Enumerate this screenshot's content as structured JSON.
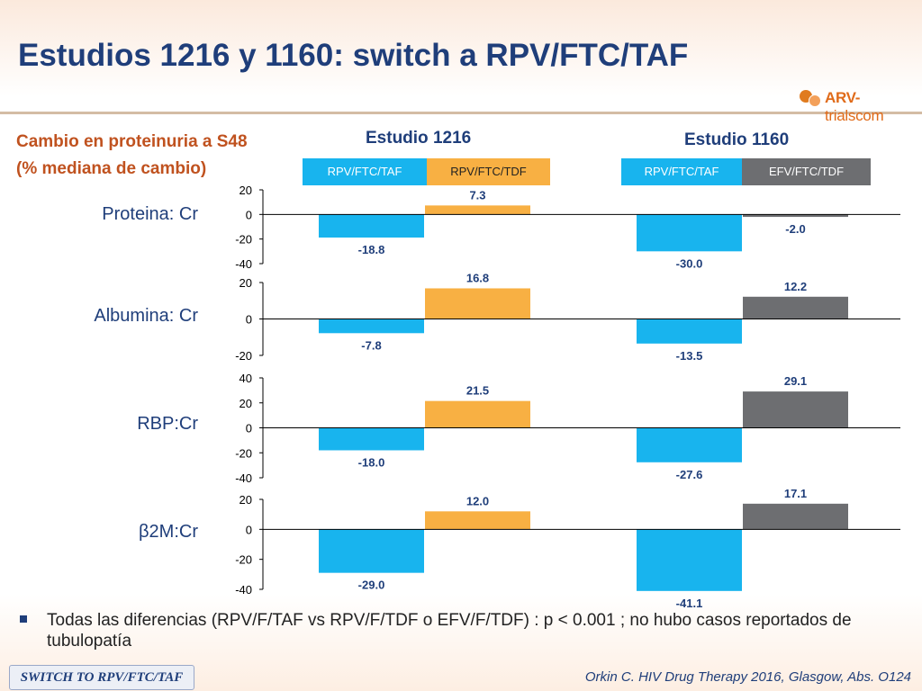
{
  "title": "Estudios 1216 y 1160: switch a RPV/FTC/TAF",
  "logo": {
    "part1": "ARV-",
    "part2": "trials",
    "part3": "com"
  },
  "subtitle": {
    "line1": "Cambio en proteinuria a S48",
    "line2": "(% mediana de cambio)"
  },
  "colors": {
    "taf": "#18b4ee",
    "tdf_1216": "#f8b043",
    "tdf_1160": "#6d6e71",
    "title": "#1f3e7a",
    "subtitle": "#c0521f"
  },
  "chart_data": {
    "type": "bar",
    "title": "Cambio en proteinuria a S48 (% mediana de cambio)",
    "studies": [
      {
        "name": "Estudio 1216",
        "series": [
          "RPV/FTC/TAF",
          "RPV/FTC/TDF"
        ]
      },
      {
        "name": "Estudio 1160",
        "series": [
          "RPV/FTC/TAF",
          "EFV/FTC/TDF"
        ]
      }
    ],
    "panels": [
      {
        "label": "Proteina: Cr",
        "ylim": [
          -40,
          20
        ],
        "ticks": [
          "20",
          "0",
          "-20",
          "-40"
        ],
        "values": [
          [
            -18.8,
            7.3
          ],
          [
            -30.0,
            -2.0
          ]
        ],
        "labels": [
          [
            "-18.8",
            "7.3"
          ],
          [
            "-30.0",
            "-2.0"
          ]
        ]
      },
      {
        "label": "Albumina: Cr",
        "ylim": [
          -20,
          20
        ],
        "ticks": [
          "20",
          "0",
          "-20"
        ],
        "values": [
          [
            -7.8,
            16.8
          ],
          [
            -13.5,
            12.2
          ]
        ],
        "labels": [
          [
            "-7.8",
            "16.8"
          ],
          [
            "-13.5",
            "12.2"
          ]
        ]
      },
      {
        "label": "RBP:Cr",
        "ylim": [
          -40,
          40
        ],
        "ticks": [
          "40",
          "20",
          "0",
          "-20",
          "-40"
        ],
        "values": [
          [
            -18.0,
            21.5
          ],
          [
            -27.6,
            29.1
          ]
        ],
        "labels": [
          [
            "-18.0",
            "21.5"
          ],
          [
            "-27.6",
            "29.1"
          ]
        ]
      },
      {
        "label": "β2M:Cr",
        "ylim": [
          -40,
          20
        ],
        "ticks": [
          "20",
          "0",
          "-20",
          "-40"
        ],
        "values": [
          [
            -29.0,
            12.0
          ],
          [
            -41.1,
            17.1
          ]
        ],
        "labels": [
          [
            "-29.0",
            "12.0"
          ],
          [
            "-41.1",
            "17.1"
          ]
        ]
      }
    ]
  },
  "bullet": "Todas las diferencias (RPV/F/TAF vs RPV/F/TDF o EFV/F/TDF) : p < 0.001 ; no hubo casos reportados de tubulopatía",
  "tag": "SWITCH TO RPV/FTC/TAF",
  "source": "Orkin C. HIV Drug Therapy 2016, Glasgow, Abs. O124"
}
